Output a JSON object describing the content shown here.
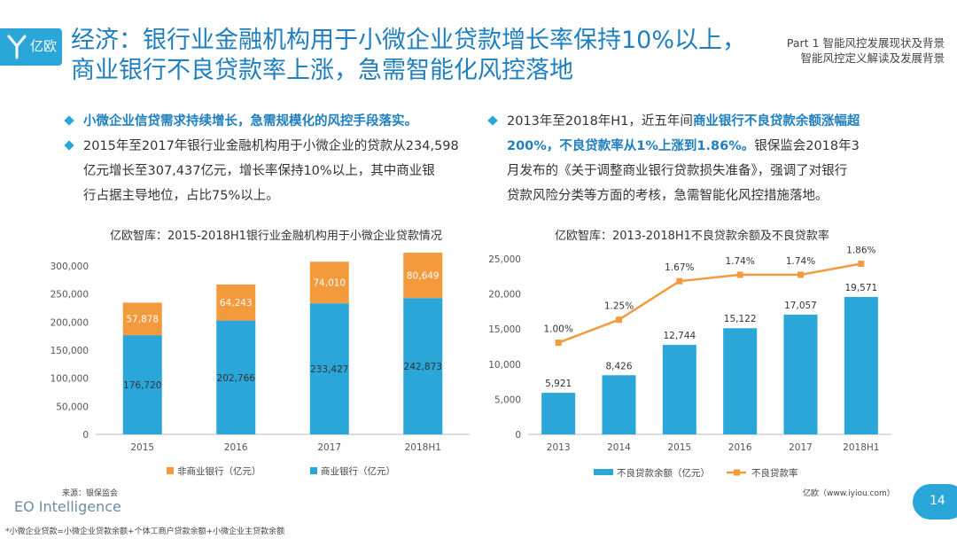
{
  "brand": {
    "logo_text": "亿欧",
    "footer_brand": "EO Intelligence",
    "site": "亿欧（www.iyiou.com）"
  },
  "header": {
    "title_line1": "经济：银行业金融机构用于小微企业贷款增长率保持10%以上，",
    "title_line2": "商业银行不良贷款率上涨，急需智能化风控落地",
    "part_line1": "Part 1 智能风控发展现状及背景",
    "part_line2": "智能风控定义解读及发展背景"
  },
  "left_bullets": {
    "b1": "小微企业信贷需求持续增长，急需规模化的风控手段落实。",
    "b2_l1": "2015年至2017年银行业金融机构用于小微企业的贷款从234,598",
    "b2_l2": "亿元增长至307,437亿元，增长率保持10%以上，其中商业银",
    "b2_l3": "行占据主导地位，占比75%以上。"
  },
  "right_bullets": {
    "l1_a": "2013年至2018年H1，近五年间",
    "l1_b": "商业银行不良贷款余额涨幅超",
    "l2_a": "200%，不良贷款率从1%上涨到1.86%。",
    "l2_b": "银保监会2018年3",
    "l3": "月发布的《关于调整商业银行贷款损失准备》，强调了对银行",
    "l4": "贷款风险分类等方面的考核，急需智能化风控措施落地。"
  },
  "chart_data": [
    {
      "type": "bar",
      "stacked": true,
      "title": "亿欧智库：2015-2018H1银行业金融机构用于小微企业贷款情况",
      "categories": [
        "2015",
        "2016",
        "2017",
        "2018H1"
      ],
      "series": [
        {
          "name": "商业银行（亿元）",
          "color": "#2aa6d9",
          "values": [
            176720,
            202766,
            233427,
            242873
          ],
          "labels": [
            "176,720",
            "202,766",
            "233,427",
            "242,873"
          ]
        },
        {
          "name": "非商业银行（亿元）",
          "color": "#f39a3d",
          "values": [
            57878,
            64243,
            74010,
            80649
          ],
          "labels": [
            "57,878",
            "64,243",
            "74,010",
            "80,649"
          ]
        }
      ],
      "ylim": [
        0,
        300000
      ],
      "yticks": [
        0,
        50000,
        100000,
        150000,
        200000,
        250000,
        300000
      ],
      "ytick_labels": [
        "0",
        "50,000",
        "100,000",
        "150,000",
        "200,000",
        "250,000",
        "300,000"
      ],
      "legend_position": "bottom"
    },
    {
      "type": "bar+line",
      "title": "亿欧智库：2013-2018H1不良贷款余额及不良贷款率",
      "categories": [
        "2013",
        "2014",
        "2015",
        "2016",
        "2017",
        "2018H1"
      ],
      "bars": {
        "name": "不良贷款余额（亿元）",
        "color": "#2aa6d9",
        "values": [
          5921,
          8426,
          12744,
          15122,
          17057,
          19571
        ],
        "labels": [
          "5,921",
          "8,426",
          "12,744",
          "15,122",
          "17,057",
          "19,571"
        ]
      },
      "line": {
        "name": "不良贷款率",
        "color": "#f39a3d",
        "values": [
          1.0,
          1.25,
          1.67,
          1.74,
          1.74,
          1.86
        ],
        "labels": [
          "1.00%",
          "1.25%",
          "1.67%",
          "1.74%",
          "1.74%",
          "1.86%"
        ]
      },
      "ylim": [
        0,
        25000
      ],
      "yticks": [
        0,
        5000,
        10000,
        15000,
        20000,
        25000
      ],
      "ytick_labels": [
        "0",
        "5,000",
        "10,000",
        "15,000",
        "20,000",
        "25,000"
      ],
      "legend_position": "bottom"
    }
  ],
  "footer": {
    "source": "来源：银保监会",
    "footnote": "*小微企业贷款=小微企业贷款余额+个体工商户贷款余额+小微企业主贷款余额",
    "page": "14"
  }
}
